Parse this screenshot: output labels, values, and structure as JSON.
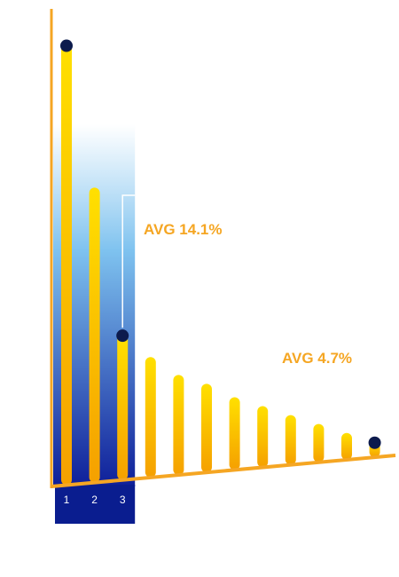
{
  "chart_data": {
    "type": "bar",
    "title": "",
    "xlabel": "",
    "ylabel": "",
    "categories": [
      "1",
      "2",
      "3",
      "",
      "",
      "",
      "",
      "",
      "",
      "",
      "",
      ""
    ],
    "highlight_categories": [
      "1",
      "2",
      "3"
    ],
    "values": [
      99,
      67,
      34,
      29,
      25,
      23,
      20,
      18,
      16,
      14,
      12,
      10
    ],
    "markers": [
      0,
      2,
      11
    ],
    "ylim": [
      0,
      105
    ],
    "annotations": [
      {
        "text": "AVG 14.1%",
        "for": "first-three"
      },
      {
        "text": "AVG 4.7%",
        "for": "rest"
      }
    ],
    "colors": {
      "bar_top": "#ffe000",
      "bar_bottom": "#f5a000",
      "axis": "#f5a623",
      "marker": "#0d1b4d",
      "highlight_top": "#ffffff",
      "highlight_mid": "#7ec2ef",
      "highlight_bottom": "#0e1f9a",
      "label": "#f5a623",
      "bracket": "#ffffff"
    }
  }
}
